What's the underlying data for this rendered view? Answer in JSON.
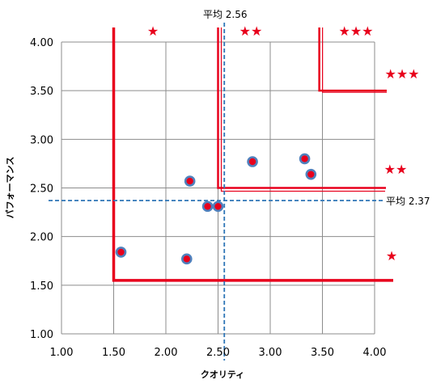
{
  "chart_data": {
    "type": "scatter",
    "title": "",
    "xlabel": "クオリティ",
    "ylabel": "パフォーマンス",
    "xlim": [
      1.0,
      4.0
    ],
    "ylim": [
      1.0,
      4.0
    ],
    "xticks": [
      "1.00",
      "1.50",
      "2.00",
      "2.50",
      "3.00",
      "3.50",
      "4.00"
    ],
    "yticks": [
      "1.00",
      "1.50",
      "2.00",
      "2.50",
      "3.00",
      "3.50",
      "4.00"
    ],
    "grid": true,
    "series": [
      {
        "points": [
          {
            "x": 1.57,
            "y": 1.84
          },
          {
            "x": 2.2,
            "y": 1.77
          },
          {
            "x": 2.23,
            "y": 2.57
          },
          {
            "x": 2.4,
            "y": 2.31
          },
          {
            "x": 2.5,
            "y": 2.31
          },
          {
            "x": 2.83,
            "y": 2.77
          },
          {
            "x": 3.33,
            "y": 2.8
          },
          {
            "x": 3.39,
            "y": 2.64
          }
        ],
        "color": "#e8001c",
        "edge_color": "#4f81bd"
      }
    ],
    "reference_lines": [
      {
        "axis": "x",
        "value": 2.56,
        "label": "平均 2.56",
        "color": "#2e75b6",
        "style": "dashed"
      },
      {
        "axis": "y",
        "value": 2.37,
        "label": "平均 2.37",
        "color": "#2e75b6",
        "style": "dashed"
      }
    ],
    "rating_regions": [
      {
        "x_start": 1.5,
        "y_start": 1.55,
        "top_label": "★",
        "side_label": "★"
      },
      {
        "x_start": 2.5,
        "y_start": 2.5,
        "top_label": "★★",
        "side_label": "★★"
      },
      {
        "x_start": 3.47,
        "y_start": 3.5,
        "top_label": "★★★",
        "side_label": "★★★"
      }
    ],
    "region_color": "#e8001c"
  }
}
